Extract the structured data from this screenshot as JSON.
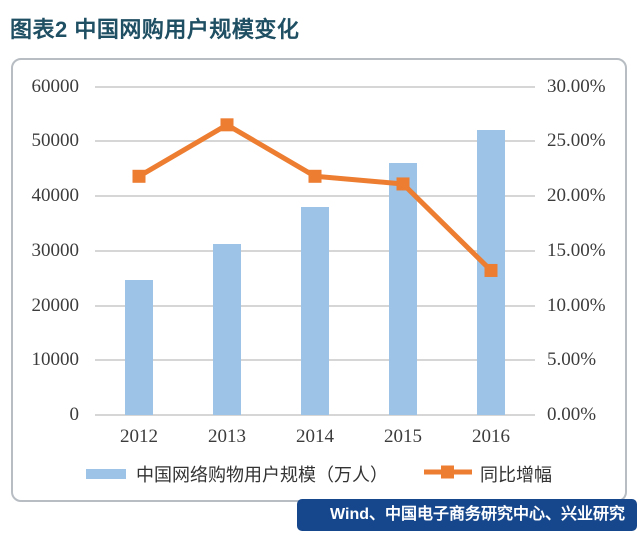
{
  "title": "图表2 中国网购用户规模变化",
  "source_bar": {
    "text": "Wind、中国电子商务研究中心、兴业研究",
    "bg_color": "#16478C",
    "text_color": "#FFFFFF"
  },
  "colors": {
    "bar": "#9DC3E6",
    "line": "#ED7D31",
    "grid": "#D6D6D6",
    "axis_text": "#3C3C3C",
    "title_text": "#1F4F63",
    "panel_border": "#B7BDC3"
  },
  "chart_data": {
    "type": "bar",
    "title": "中国网购用户规模变化",
    "categories": [
      "2012",
      "2013",
      "2014",
      "2015",
      "2016"
    ],
    "series": [
      {
        "name": "中国网络购物用户规模（万人）",
        "type": "bar",
        "axis": "left",
        "color": "#9DC3E6",
        "values": [
          24700,
          31200,
          38000,
          46000,
          52000
        ]
      },
      {
        "name": "同比增幅",
        "type": "line",
        "axis": "right",
        "color": "#ED7D31",
        "unit": "%",
        "values": [
          21.8,
          26.5,
          21.8,
          21.1,
          13.2
        ]
      }
    ],
    "left_axis": {
      "min": 0,
      "max": 60000,
      "step": 10000,
      "labels": [
        "60000",
        "50000",
        "40000",
        "30000",
        "20000",
        "10000",
        "0"
      ]
    },
    "right_axis": {
      "min": 0,
      "max": 30,
      "step": 5,
      "labels": [
        "30.00%",
        "25.00%",
        "20.00%",
        "15.00%",
        "10.00%",
        "5.00%",
        "0.00%"
      ]
    },
    "grid": true,
    "legend_position": "bottom"
  }
}
